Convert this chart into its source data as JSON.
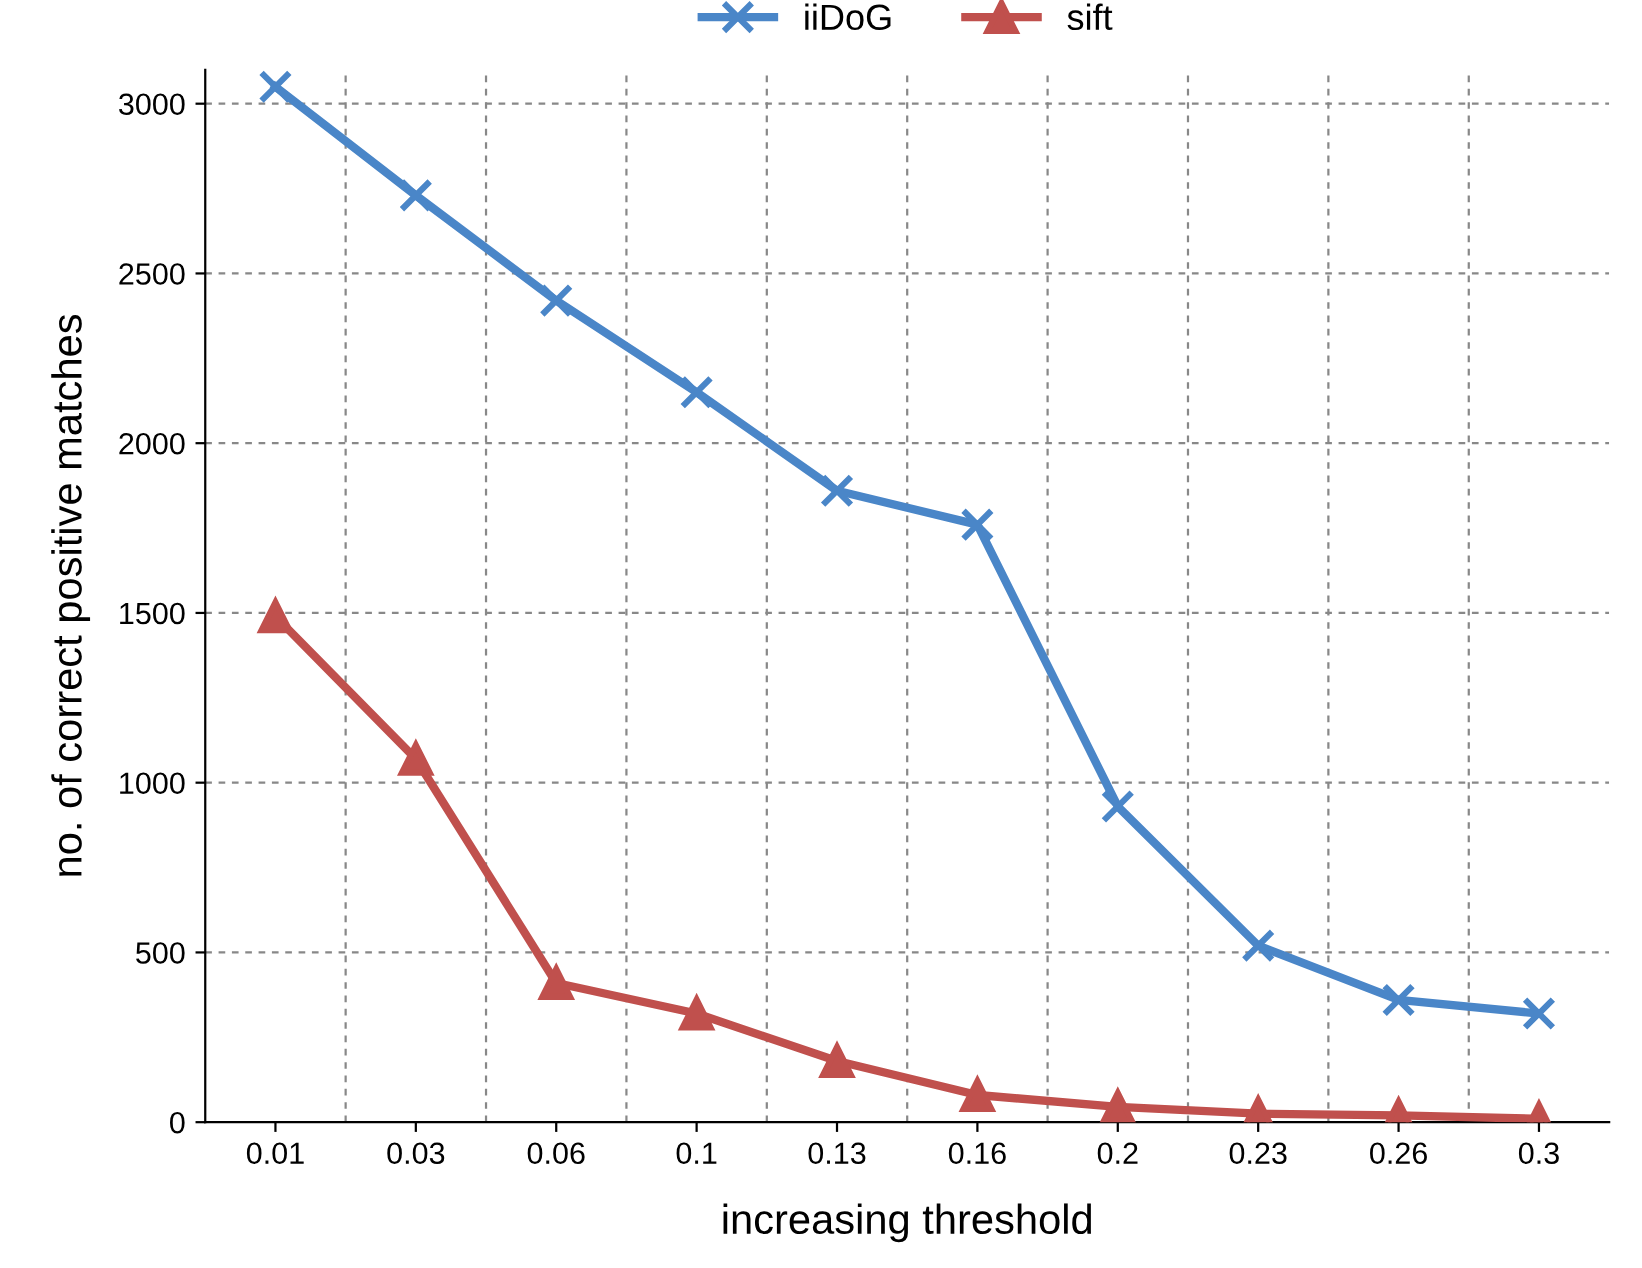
{
  "chart_data": {
    "type": "line",
    "xlabel": "increasing threshold",
    "ylabel": "no. of correct positive matches",
    "categories": [
      "0.01",
      "0.03",
      "0.06",
      "0.1",
      "0.13",
      "0.16",
      "0.2",
      "0.23",
      "0.26",
      "0.3"
    ],
    "series": [
      {
        "name": "iiDoG",
        "color": "#4a86c8",
        "marker": "cross",
        "values": [
          3050,
          2730,
          2420,
          2150,
          1860,
          1760,
          930,
          520,
          360,
          320
        ]
      },
      {
        "name": "sift",
        "color": "#c0504d",
        "marker": "triangle",
        "values": [
          1490,
          1070,
          410,
          320,
          180,
          80,
          45,
          25,
          20,
          10
        ]
      }
    ],
    "ylim": [
      0,
      3100
    ],
    "yticks": [
      0,
      500,
      1000,
      1500,
      2000,
      2500,
      3000
    ],
    "grid": true,
    "legend": "top",
    "line_style": "solid"
  }
}
